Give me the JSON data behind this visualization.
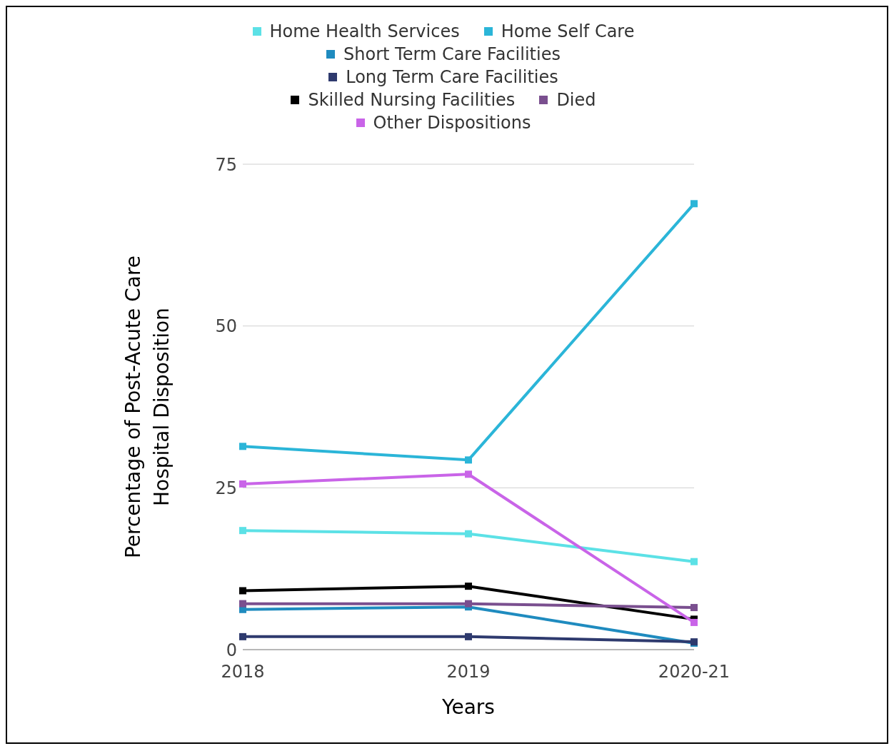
{
  "chart_data": {
    "type": "line",
    "xlabel": "Years",
    "ylabel": "Percentage of Post-Acute Care Hospital Disposition",
    "categories": [
      "2018",
      "2019",
      "2020-21"
    ],
    "series": [
      {
        "name": "Home Health Services",
        "color": "#5ce1e6",
        "values": [
          18.4,
          17.9,
          13.6
        ]
      },
      {
        "name": "Home Self Care",
        "color": "#2bb5d8",
        "values": [
          31.4,
          29.3,
          68.9
        ]
      },
      {
        "name": "Short Term Care Facilities",
        "color": "#1f8bbf",
        "values": [
          6.2,
          6.6,
          1.0
        ]
      },
      {
        "name": "Long Term Care Facilities",
        "color": "#2e3a6e",
        "values": [
          2.0,
          2.0,
          1.2
        ]
      },
      {
        "name": "Skilled Nursing Facilities",
        "color": "#000000",
        "values": [
          9.1,
          9.8,
          4.7
        ]
      },
      {
        "name": "Died",
        "color": "#7a4f8f",
        "values": [
          7.1,
          7.1,
          6.5
        ]
      },
      {
        "name": "Other Dispositions",
        "color": "#c964e8",
        "values": [
          25.6,
          27.1,
          4.2
        ]
      }
    ],
    "ylim": [
      0,
      75
    ],
    "yticks": [
      0,
      25,
      50,
      75
    ],
    "grid": "y",
    "legend": "top",
    "marker": "square",
    "line_style": "solid"
  }
}
